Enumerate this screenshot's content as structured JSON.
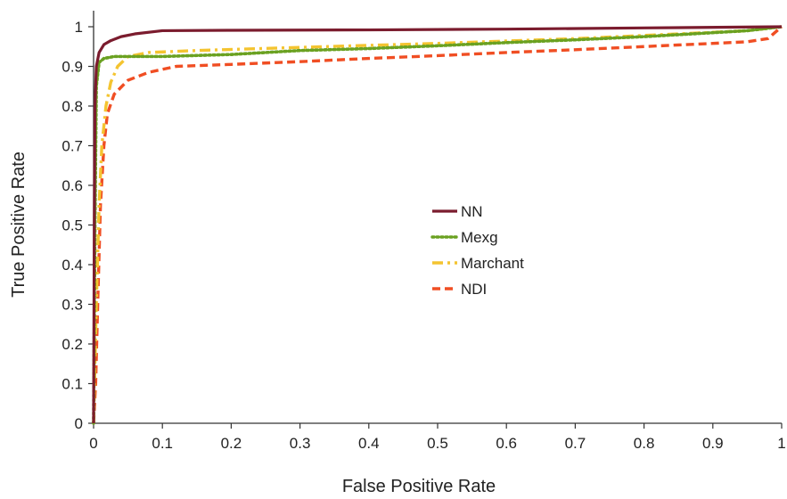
{
  "chart_data": {
    "type": "line",
    "xlabel": "False Positive Rate",
    "ylabel": "True Positive Rate",
    "xlim": [
      0,
      1
    ],
    "ylim": [
      0,
      1
    ],
    "xticks": [
      "0",
      "0.1",
      "0.2",
      "0.3",
      "0.4",
      "0.5",
      "0.6",
      "0.7",
      "0.8",
      "0.9",
      "1"
    ],
    "yticks": [
      "0",
      "0.1",
      "0.2",
      "0.3",
      "0.4",
      "0.5",
      "0.6",
      "0.7",
      "0.8",
      "0.9",
      "1"
    ],
    "grid": false,
    "legend_position": "center-right",
    "series": [
      {
        "name": "NN",
        "color": "#7b1c2e",
        "style": "solid",
        "points": [
          [
            0,
            0
          ],
          [
            0.001,
            0.5
          ],
          [
            0.002,
            0.8
          ],
          [
            0.004,
            0.9
          ],
          [
            0.008,
            0.935
          ],
          [
            0.015,
            0.955
          ],
          [
            0.025,
            0.965
          ],
          [
            0.04,
            0.975
          ],
          [
            0.06,
            0.982
          ],
          [
            0.1,
            0.99
          ],
          [
            0.2,
            0.991
          ],
          [
            0.4,
            0.992
          ],
          [
            0.6,
            0.994
          ],
          [
            0.8,
            0.997
          ],
          [
            1,
            1
          ]
        ]
      },
      {
        "name": "Mexg",
        "color": "#6aa121",
        "style": "dotted",
        "points": [
          [
            0,
            0
          ],
          [
            0.002,
            0.5
          ],
          [
            0.004,
            0.85
          ],
          [
            0.008,
            0.91
          ],
          [
            0.015,
            0.92
          ],
          [
            0.03,
            0.925
          ],
          [
            0.1,
            0.925
          ],
          [
            0.2,
            0.93
          ],
          [
            0.3,
            0.94
          ],
          [
            0.4,
            0.945
          ],
          [
            0.5,
            0.952
          ],
          [
            0.6,
            0.96
          ],
          [
            0.7,
            0.967
          ],
          [
            0.8,
            0.975
          ],
          [
            0.9,
            0.985
          ],
          [
            0.95,
            0.99
          ],
          [
            1,
            1
          ]
        ]
      },
      {
        "name": "Marchant",
        "color": "#f4c430",
        "style": "dashdot",
        "points": [
          [
            0,
            0
          ],
          [
            0.004,
            0.3
          ],
          [
            0.008,
            0.55
          ],
          [
            0.012,
            0.7
          ],
          [
            0.018,
            0.8
          ],
          [
            0.025,
            0.86
          ],
          [
            0.035,
            0.9
          ],
          [
            0.05,
            0.925
          ],
          [
            0.08,
            0.935
          ],
          [
            0.15,
            0.94
          ],
          [
            0.3,
            0.948
          ],
          [
            0.5,
            0.958
          ],
          [
            0.7,
            0.97
          ],
          [
            0.85,
            0.982
          ],
          [
            0.95,
            0.99
          ],
          [
            1,
            1
          ]
        ]
      },
      {
        "name": "NDI",
        "color": "#f04e23",
        "style": "dashed",
        "points": [
          [
            0,
            0
          ],
          [
            0.003,
            0.1
          ],
          [
            0.006,
            0.3
          ],
          [
            0.01,
            0.55
          ],
          [
            0.015,
            0.7
          ],
          [
            0.02,
            0.78
          ],
          [
            0.03,
            0.83
          ],
          [
            0.05,
            0.865
          ],
          [
            0.08,
            0.885
          ],
          [
            0.12,
            0.9
          ],
          [
            0.2,
            0.905
          ],
          [
            0.3,
            0.912
          ],
          [
            0.4,
            0.92
          ],
          [
            0.5,
            0.927
          ],
          [
            0.6,
            0.935
          ],
          [
            0.7,
            0.942
          ],
          [
            0.8,
            0.95
          ],
          [
            0.9,
            0.958
          ],
          [
            0.95,
            0.962
          ],
          [
            0.98,
            0.97
          ],
          [
            1,
            1
          ]
        ]
      }
    ]
  }
}
